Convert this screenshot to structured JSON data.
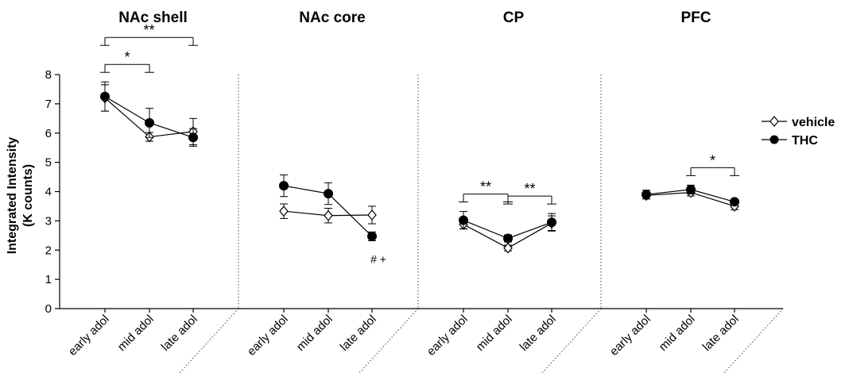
{
  "chart_data": {
    "type": "line",
    "ylabel_line1": "Integrated Intensity",
    "ylabel_line2": "(K counts)",
    "ylim": [
      0,
      8
    ],
    "yticks": [
      0,
      1,
      2,
      3,
      4,
      5,
      6,
      7,
      8
    ],
    "categories": [
      "early adol",
      "mid adol",
      "late adol"
    ],
    "legend": {
      "placement": "right",
      "entries": [
        {
          "name": "vehicle",
          "marker": "open-diamond"
        },
        {
          "name": "THC",
          "marker": "filled-circle"
        }
      ]
    },
    "panels": [
      {
        "title": "NAc shell",
        "series": [
          {
            "name": "vehicle",
            "values": [
              7.2,
              5.87,
              6.05
            ],
            "errors": [
              0.45,
              0.15,
              0.45
            ]
          },
          {
            "name": "THC",
            "values": [
              7.25,
              6.35,
              5.85
            ],
            "errors": [
              0.5,
              0.5,
              0.3
            ]
          }
        ],
        "significance": [
          {
            "from": 0,
            "to": 1,
            "label": "*"
          },
          {
            "from": 0,
            "to": 2,
            "label": "**"
          }
        ],
        "annotations": []
      },
      {
        "title": "NAc core",
        "series": [
          {
            "name": "vehicle",
            "values": [
              3.33,
              3.18,
              3.2
            ],
            "errors": [
              0.25,
              0.25,
              0.3
            ]
          },
          {
            "name": "THC",
            "values": [
              4.2,
              3.93,
              2.47
            ],
            "errors": [
              0.37,
              0.37,
              0.15
            ]
          }
        ],
        "significance": [],
        "annotations": [
          {
            "category": 2,
            "text": "# +"
          }
        ]
      },
      {
        "title": "CP",
        "series": [
          {
            "name": "vehicle",
            "values": [
              2.88,
              2.07,
              2.92
            ],
            "errors": [
              0.15,
              0.1,
              0.25
            ]
          },
          {
            "name": "THC",
            "values": [
              3.02,
              2.4,
              2.95
            ],
            "errors": [
              0.3,
              0.12,
              0.3
            ]
          }
        ],
        "significance": [
          {
            "from": 0,
            "to": 1,
            "label": "**"
          },
          {
            "from": 1,
            "to": 2,
            "label": "**"
          }
        ],
        "annotations": []
      },
      {
        "title": "PFC",
        "series": [
          {
            "name": "vehicle",
            "values": [
              3.87,
              3.97,
              3.5
            ],
            "errors": [
              0.12,
              0.12,
              0.12
            ]
          },
          {
            "name": "THC",
            "values": [
              3.9,
              4.07,
              3.65
            ],
            "errors": [
              0.15,
              0.15,
              0.08
            ]
          }
        ],
        "significance": [
          {
            "from": 1,
            "to": 2,
            "label": "*"
          }
        ],
        "annotations": []
      }
    ]
  }
}
